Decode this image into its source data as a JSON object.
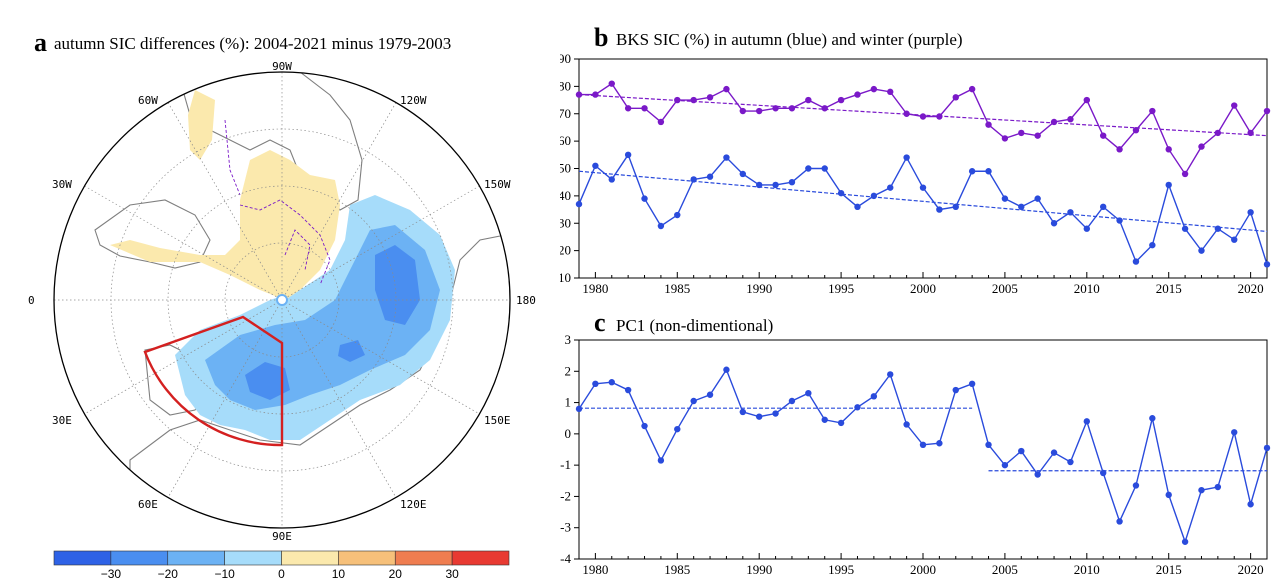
{
  "panel_a": {
    "letter": "a",
    "title": "autumn SIC differences (%): 2004-2021 minus 1979-2003",
    "longitude_labels": [
      "90W",
      "120W",
      "150W",
      "180",
      "150E",
      "120E",
      "90E",
      "60E",
      "30E",
      "0",
      "30W",
      "60W"
    ],
    "colorbar": {
      "tick_labels": [
        "−30",
        "−20",
        "−10",
        "0",
        "10",
        "20",
        "30"
      ],
      "colors": [
        "#2e62e6",
        "#4a8ef0",
        "#6cb2f4",
        "#a6dcfa",
        "#fbe9ad",
        "#f6c07a",
        "#ef7d50",
        "#e83a32"
      ]
    },
    "colors": {
      "ocean": "#ffffff",
      "land_outline": "#7f7f7f",
      "decrease_light": "#a6dcfa",
      "decrease_mid": "#6cb2f4",
      "decrease_strong": "#4a8ef0",
      "increase_light": "#fbe9ad",
      "box": "#d42020",
      "contour": "#7a19c8"
    }
  },
  "chart_data": [
    {
      "type": "line",
      "panel": "b",
      "letter": "b",
      "title": "BKS SIC (%) in autumn (blue) and winter (purple)",
      "x": [
        1979,
        1980,
        1981,
        1982,
        1983,
        1984,
        1985,
        1986,
        1987,
        1988,
        1989,
        1990,
        1991,
        1992,
        1993,
        1994,
        1995,
        1996,
        1997,
        1998,
        1999,
        2000,
        2001,
        2002,
        2003,
        2004,
        2005,
        2006,
        2007,
        2008,
        2009,
        2010,
        2011,
        2012,
        2013,
        2014,
        2015,
        2016,
        2017,
        2018,
        2019,
        2020,
        2021
      ],
      "xlim": [
        1979,
        2021
      ],
      "xticks": [
        1980,
        1985,
        1990,
        1995,
        2000,
        2005,
        2010,
        2015,
        2020
      ],
      "ylim": [
        10,
        90
      ],
      "yticks": [
        10,
        20,
        30,
        40,
        50,
        60,
        70,
        80,
        90
      ],
      "series": [
        {
          "color": "#7a19c8",
          "values": [
            77,
            77,
            81,
            72,
            72,
            67,
            75,
            75,
            76,
            79,
            71,
            71,
            72,
            72,
            75,
            72,
            75,
            77,
            79,
            78,
            70,
            69,
            69,
            76,
            79,
            66,
            61,
            63,
            62,
            67,
            68,
            75,
            62,
            57,
            64,
            71,
            57,
            48,
            58,
            63,
            73,
            63,
            71
          ],
          "trend": [
            77,
            62
          ]
        },
        {
          "color": "#2a4bdc",
          "values": [
            37,
            51,
            46,
            55,
            39,
            29,
            33,
            46,
            47,
            54,
            48,
            44,
            44,
            45,
            50,
            50,
            41,
            36,
            40,
            43,
            54,
            43,
            35,
            36,
            49,
            49,
            39,
            36,
            39,
            30,
            34,
            28,
            36,
            31,
            16,
            22,
            44,
            28,
            20,
            28,
            24,
            34,
            15
          ],
          "trend": [
            49,
            27
          ]
        }
      ]
    },
    {
      "type": "line",
      "panel": "c",
      "letter": "c",
      "title": "PC1 (non-dimentional)",
      "x": [
        1979,
        1980,
        1981,
        1982,
        1983,
        1984,
        1985,
        1986,
        1987,
        1988,
        1989,
        1990,
        1991,
        1992,
        1993,
        1994,
        1995,
        1996,
        1997,
        1998,
        1999,
        2000,
        2001,
        2002,
        2003,
        2004,
        2005,
        2006,
        2007,
        2008,
        2009,
        2010,
        2011,
        2012,
        2013,
        2014,
        2015,
        2016,
        2017,
        2018,
        2019,
        2020,
        2021
      ],
      "xlim": [
        1979,
        2021
      ],
      "xticks": [
        1980,
        1985,
        1990,
        1995,
        2000,
        2005,
        2010,
        2015,
        2020
      ],
      "ylim": [
        -4,
        3
      ],
      "yticks": [
        -4,
        -3,
        -2,
        -1,
        0,
        1,
        2,
        3
      ],
      "series": [
        {
          "color": "#2a4bdc",
          "values": [
            0.8,
            1.6,
            1.65,
            1.4,
            0.25,
            -0.85,
            0.15,
            1.05,
            1.25,
            2.05,
            0.7,
            0.55,
            0.65,
            1.05,
            1.3,
            0.45,
            0.35,
            0.85,
            1.2,
            1.9,
            0.3,
            -0.35,
            -0.3,
            1.4,
            1.6,
            -0.35,
            -1.0,
            -0.55,
            -1.3,
            -0.6,
            -0.9,
            0.4,
            -1.25,
            -2.8,
            -1.65,
            0.5,
            -1.95,
            -3.45,
            -1.8,
            -1.7,
            0.05,
            -2.25,
            -0.45
          ]
        }
      ],
      "period_means": [
        {
          "start": 1979,
          "end": 2003,
          "value": 0.82
        },
        {
          "start": 2004,
          "end": 2021,
          "value": -1.18
        }
      ]
    }
  ]
}
